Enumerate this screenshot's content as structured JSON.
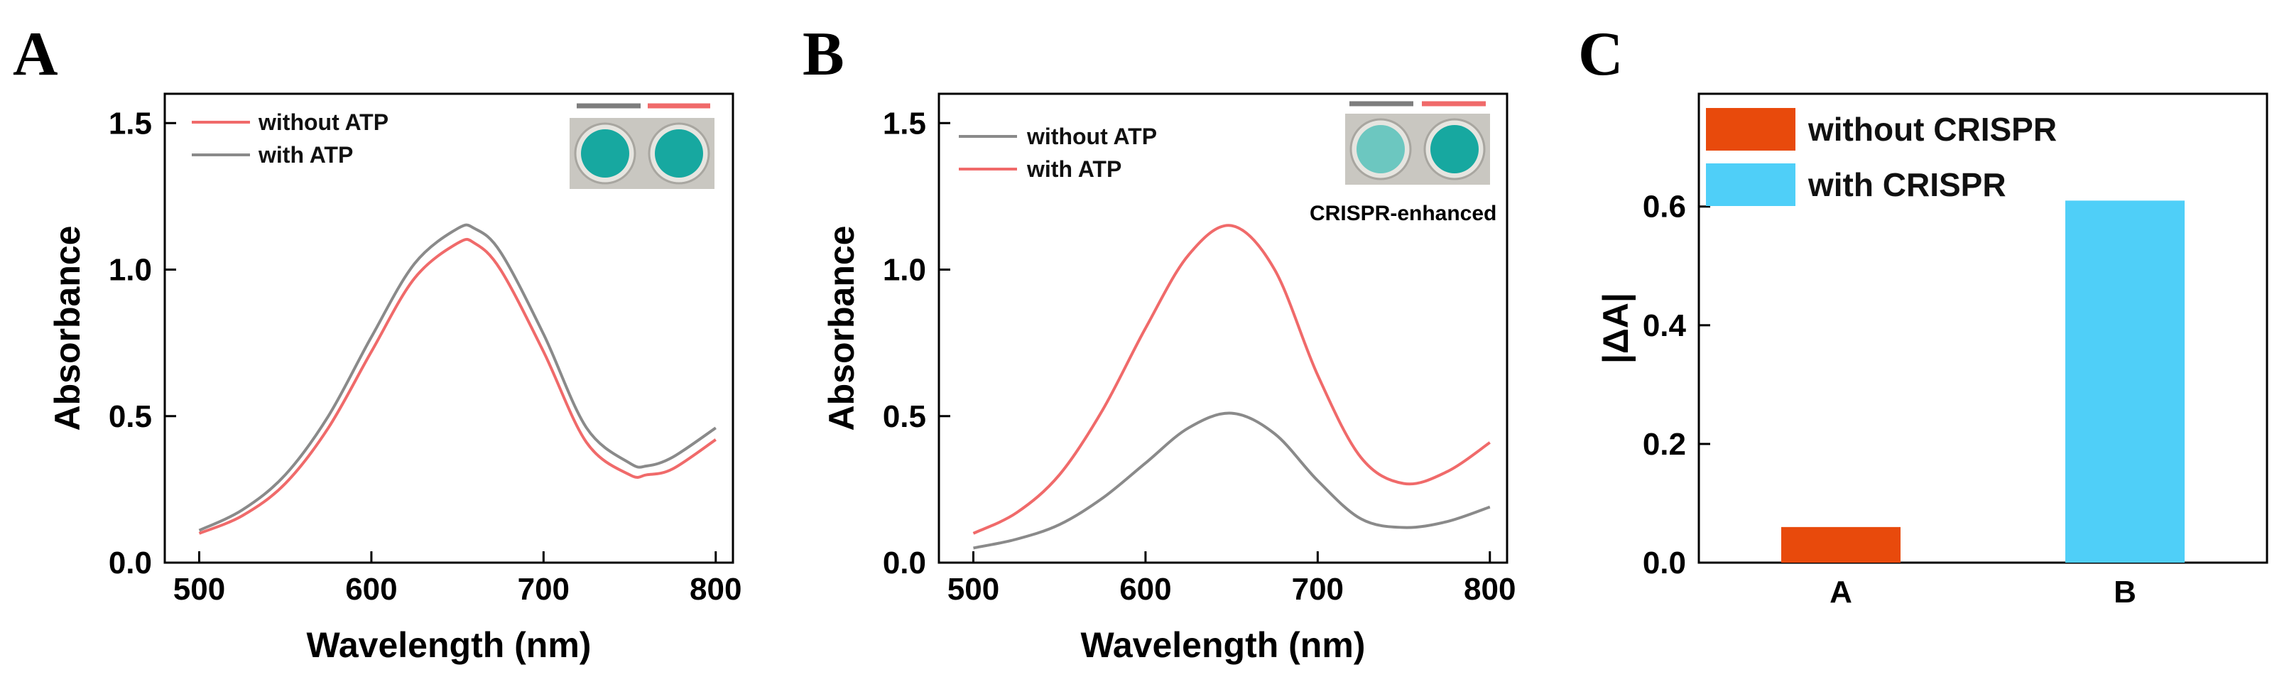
{
  "colors": {
    "red_line": "#f06a6a",
    "gray_line": "#8a8a8a",
    "orange_bar": "#e84a0c",
    "cyan_bar": "#4fcff8",
    "well_teal": "#17a8a0",
    "well_pale": "#6cc7c0",
    "plate_bg": "#c9c7c1"
  },
  "chart_data": [
    {
      "panel": "A",
      "type": "line",
      "xlabel": "Wavelength (nm)",
      "ylabel": "Absorbance",
      "xlim": [
        480,
        810
      ],
      "ylim": [
        0,
        1.6
      ],
      "xticks": [
        "500",
        "600",
        "700",
        "800"
      ],
      "yticks": [
        "0.0",
        "0.5",
        "1.0",
        "1.5"
      ],
      "legend_position": "top-left",
      "series": [
        {
          "name": "without ATP",
          "color_key": "red_line",
          "x": [
            500,
            525,
            550,
            575,
            600,
            625,
            650,
            660,
            675,
            700,
            725,
            750,
            760,
            775,
            800
          ],
          "y": [
            0.1,
            0.16,
            0.27,
            0.46,
            0.72,
            0.97,
            1.09,
            1.09,
            1.0,
            0.72,
            0.41,
            0.3,
            0.3,
            0.32,
            0.42
          ]
        },
        {
          "name": "with ATP",
          "color_key": "gray_line",
          "x": [
            500,
            525,
            550,
            575,
            600,
            625,
            650,
            660,
            675,
            700,
            725,
            750,
            760,
            775,
            800
          ],
          "y": [
            0.11,
            0.18,
            0.3,
            0.5,
            0.77,
            1.02,
            1.14,
            1.14,
            1.06,
            0.78,
            0.46,
            0.34,
            0.33,
            0.36,
            0.46
          ]
        }
      ]
    },
    {
      "panel": "B",
      "type": "line",
      "xlabel": "Wavelength (nm)",
      "ylabel": "Absorbance",
      "xlim": [
        480,
        810
      ],
      "ylim": [
        0,
        1.6
      ],
      "xticks": [
        "500",
        "600",
        "700",
        "800"
      ],
      "yticks": [
        "0.0",
        "0.5",
        "1.0",
        "1.5"
      ],
      "legend_position": "top-left",
      "annotation": "CRISPR-enhanced",
      "series": [
        {
          "name": "without ATP",
          "color_key": "gray_line",
          "x": [
            500,
            525,
            550,
            575,
            600,
            625,
            650,
            675,
            700,
            725,
            750,
            775,
            800
          ],
          "y": [
            0.05,
            0.08,
            0.13,
            0.22,
            0.34,
            0.46,
            0.51,
            0.44,
            0.28,
            0.15,
            0.12,
            0.14,
            0.19
          ]
        },
        {
          "name": "with ATP",
          "color_key": "red_line",
          "x": [
            500,
            525,
            550,
            575,
            600,
            625,
            650,
            675,
            700,
            725,
            750,
            775,
            800
          ],
          "y": [
            0.1,
            0.17,
            0.3,
            0.52,
            0.8,
            1.05,
            1.15,
            1.0,
            0.64,
            0.36,
            0.27,
            0.31,
            0.41
          ]
        }
      ]
    },
    {
      "panel": "C",
      "type": "bar",
      "xlabel": "",
      "ylabel": "|ΔA|",
      "ylim": [
        0,
        0.79
      ],
      "yticks": [
        "0.0",
        "0.2",
        "0.4",
        "0.6"
      ],
      "categories": [
        "A",
        "B"
      ],
      "values": [
        0.06,
        0.61
      ],
      "bar_color_keys": [
        "orange_bar",
        "cyan_bar"
      ],
      "legend_position": "top-left",
      "legend": [
        {
          "name": "without CRISPR",
          "color_key": "orange_bar"
        },
        {
          "name": "with CRISPR",
          "color_key": "cyan_bar"
        }
      ]
    }
  ]
}
